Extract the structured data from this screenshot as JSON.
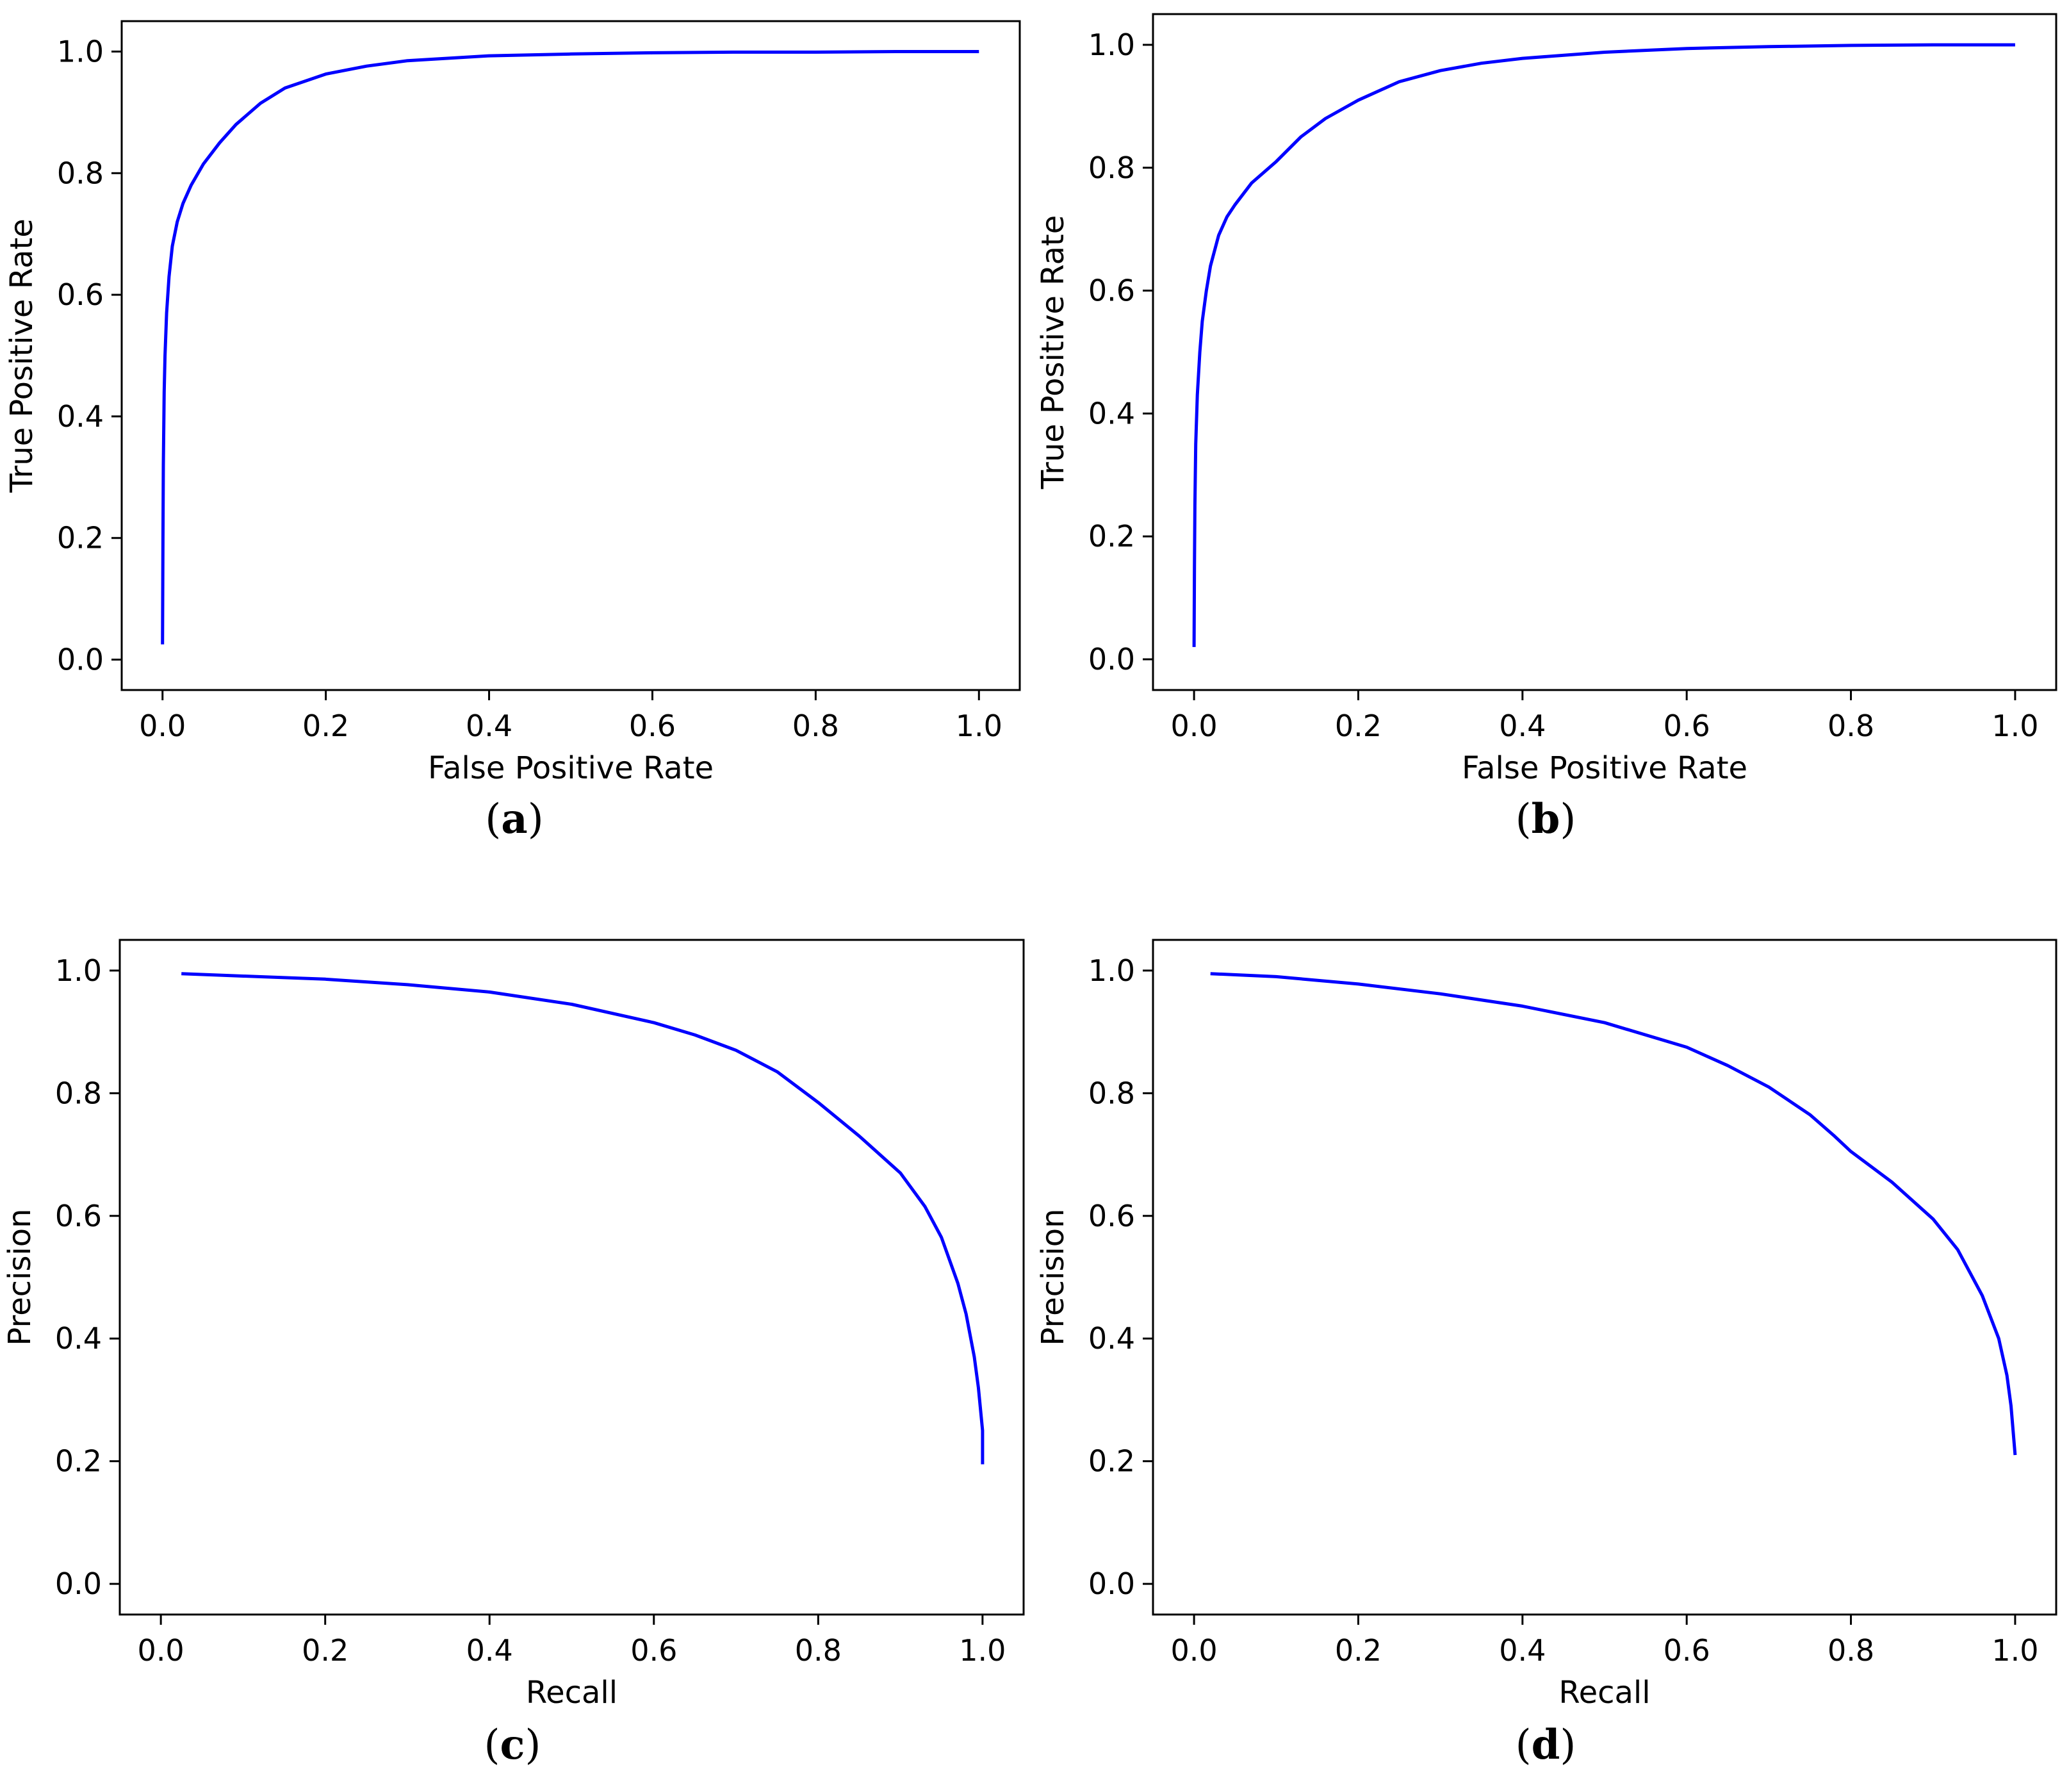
{
  "figure": {
    "line_color": "#0000ff",
    "panels": [
      {
        "id": "a",
        "panel_label": "(a)",
        "panel_letter": "a"
      },
      {
        "id": "b",
        "panel_label": "(b)",
        "panel_letter": "b"
      },
      {
        "id": "c",
        "panel_label": "(c)",
        "panel_letter": "c"
      },
      {
        "id": "d",
        "panel_label": "(d)",
        "panel_letter": "d"
      }
    ]
  },
  "chart_data": [
    {
      "type": "line",
      "panel": "a",
      "xlabel": "False Positive Rate",
      "ylabel": "True Positive Rate",
      "xlim": [
        -0.05,
        1.05
      ],
      "ylim": [
        -0.05,
        1.05
      ],
      "xticks": [
        "0.0",
        "0.2",
        "0.4",
        "0.6",
        "0.8",
        "1.0"
      ],
      "yticks": [
        "0.0",
        "0.2",
        "0.4",
        "0.6",
        "0.8",
        "1.0"
      ],
      "grid": false,
      "series": [
        {
          "color": "#0000ff",
          "x": [
            0.0,
            0.0005,
            0.001,
            0.002,
            0.003,
            0.005,
            0.008,
            0.012,
            0.018,
            0.025,
            0.035,
            0.05,
            0.07,
            0.09,
            0.12,
            0.15,
            0.2,
            0.25,
            0.3,
            0.4,
            0.5,
            0.6,
            0.7,
            0.8,
            0.9,
            1.0
          ],
          "y": [
            0.025,
            0.2,
            0.32,
            0.44,
            0.5,
            0.57,
            0.63,
            0.68,
            0.72,
            0.75,
            0.78,
            0.815,
            0.85,
            0.88,
            0.915,
            0.94,
            0.963,
            0.976,
            0.985,
            0.993,
            0.996,
            0.998,
            0.999,
            0.999,
            1.0,
            1.0
          ]
        }
      ]
    },
    {
      "type": "line",
      "panel": "b",
      "xlabel": "False Positive Rate",
      "ylabel": "True Positive Rate",
      "xlim": [
        -0.05,
        1.05
      ],
      "ylim": [
        -0.05,
        1.05
      ],
      "xticks": [
        "0.0",
        "0.2",
        "0.4",
        "0.6",
        "0.8",
        "1.0"
      ],
      "yticks": [
        "0.0",
        "0.2",
        "0.4",
        "0.6",
        "0.8",
        "1.0"
      ],
      "grid": false,
      "series": [
        {
          "color": "#0000ff",
          "x": [
            0.0,
            0.0005,
            0.001,
            0.002,
            0.004,
            0.007,
            0.01,
            0.015,
            0.02,
            0.03,
            0.04,
            0.05,
            0.07,
            0.1,
            0.13,
            0.16,
            0.2,
            0.25,
            0.3,
            0.35,
            0.4,
            0.5,
            0.6,
            0.7,
            0.8,
            0.9,
            1.0
          ],
          "y": [
            0.02,
            0.15,
            0.25,
            0.35,
            0.43,
            0.5,
            0.55,
            0.6,
            0.64,
            0.69,
            0.72,
            0.74,
            0.775,
            0.81,
            0.85,
            0.88,
            0.91,
            0.94,
            0.958,
            0.97,
            0.978,
            0.988,
            0.994,
            0.997,
            0.999,
            1.0,
            1.0
          ]
        }
      ]
    },
    {
      "type": "line",
      "panel": "c",
      "xlabel": "Recall",
      "ylabel": "Precision",
      "xlim": [
        -0.05,
        1.05
      ],
      "ylim": [
        -0.05,
        1.05
      ],
      "xticks": [
        "0.0",
        "0.2",
        "0.4",
        "0.6",
        "0.8",
        "1.0"
      ],
      "yticks": [
        "0.0",
        "0.2",
        "0.4",
        "0.6",
        "0.8",
        "1.0"
      ],
      "grid": false,
      "series": [
        {
          "color": "#0000ff",
          "x": [
            0.025,
            0.1,
            0.2,
            0.3,
            0.4,
            0.5,
            0.6,
            0.65,
            0.7,
            0.75,
            0.8,
            0.85,
            0.9,
            0.93,
            0.95,
            0.97,
            0.98,
            0.99,
            0.995,
            1.0,
            1.0
          ],
          "y": [
            0.995,
            0.991,
            0.986,
            0.977,
            0.965,
            0.945,
            0.915,
            0.895,
            0.87,
            0.835,
            0.785,
            0.73,
            0.67,
            0.615,
            0.565,
            0.49,
            0.44,
            0.37,
            0.32,
            0.25,
            0.195
          ]
        }
      ]
    },
    {
      "type": "line",
      "panel": "d",
      "xlabel": "Recall",
      "ylabel": "Precision",
      "xlim": [
        -0.05,
        1.05
      ],
      "ylim": [
        -0.05,
        1.05
      ],
      "xticks": [
        "0.0",
        "0.2",
        "0.4",
        "0.6",
        "0.8",
        "1.0"
      ],
      "yticks": [
        "0.0",
        "0.2",
        "0.4",
        "0.6",
        "0.8",
        "1.0"
      ],
      "grid": false,
      "series": [
        {
          "color": "#0000ff",
          "x": [
            0.02,
            0.1,
            0.2,
            0.3,
            0.4,
            0.5,
            0.6,
            0.65,
            0.7,
            0.75,
            0.78,
            0.8,
            0.85,
            0.9,
            0.93,
            0.96,
            0.98,
            0.99,
            0.995,
            1.0
          ],
          "y": [
            0.995,
            0.99,
            0.978,
            0.962,
            0.942,
            0.915,
            0.875,
            0.845,
            0.81,
            0.765,
            0.73,
            0.705,
            0.655,
            0.595,
            0.545,
            0.47,
            0.4,
            0.34,
            0.29,
            0.21
          ]
        }
      ]
    }
  ]
}
